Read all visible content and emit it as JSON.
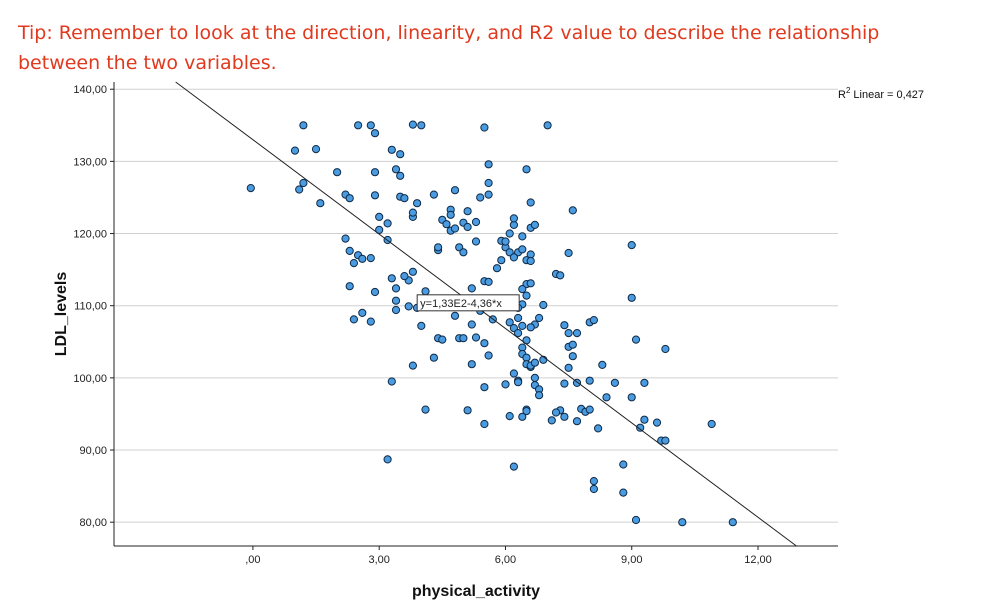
{
  "tip": {
    "line1": "Tip: Remember to look at the direction, linearity, and R2 value to describe the relationship",
    "line2": "between the two variables."
  },
  "colors": {
    "tip_text": "#e1391e",
    "point_fill": "#4a9be0",
    "point_stroke": "#0e2a47",
    "grid": "#d0d0d0",
    "fit_line": "#222222"
  },
  "chart_data": {
    "type": "scatter",
    "title": "",
    "xlabel": "physical_activity",
    "ylabel": "LDL_levels",
    "xlim": [
      -3.3,
      13.9
    ],
    "ylim": [
      76.7,
      141.0
    ],
    "xticks": [
      0,
      3,
      6,
      9,
      12
    ],
    "xtick_labels": [
      ",00",
      "3,00",
      "6,00",
      "9,00",
      "12,00"
    ],
    "yticks": [
      80,
      90,
      100,
      110,
      120,
      130,
      140
    ],
    "ytick_labels": [
      "80,00",
      "90,00",
      "100,00",
      "110,00",
      "120,00",
      "130,00",
      "140,00"
    ],
    "grid": "horizontal",
    "fit": {
      "type": "linear",
      "intercept": 133,
      "slope": -4.36,
      "label": "y=1,33E2-4,36*x",
      "r2_label": "Linear = 0,427",
      "r2_prefix": "R",
      "r2_sup": "2"
    },
    "points": [
      [
        -0.05,
        126.3
      ],
      [
        1.0,
        131.5
      ],
      [
        1.2,
        135.0
      ],
      [
        1.5,
        131.7
      ],
      [
        1.1,
        126.1
      ],
      [
        1.2,
        127.0
      ],
      [
        1.6,
        124.2
      ],
      [
        2.0,
        128.5
      ],
      [
        2.2,
        125.4
      ],
      [
        2.3,
        124.9
      ],
      [
        2.5,
        135.0
      ],
      [
        2.8,
        135.0
      ],
      [
        2.9,
        133.9
      ],
      [
        2.9,
        128.5
      ],
      [
        2.2,
        119.3
      ],
      [
        2.3,
        117.6
      ],
      [
        2.4,
        115.9
      ],
      [
        2.5,
        117.0
      ],
      [
        2.6,
        116.5
      ],
      [
        2.8,
        116.6
      ],
      [
        2.3,
        112.7
      ],
      [
        2.4,
        108.1
      ],
      [
        2.6,
        109.0
      ],
      [
        2.8,
        107.8
      ],
      [
        2.9,
        111.9
      ],
      [
        3.0,
        120.5
      ],
      [
        2.9,
        125.3
      ],
      [
        3.2,
        121.4
      ],
      [
        3.3,
        131.6
      ],
      [
        3.4,
        128.9
      ],
      [
        3.5,
        125.1
      ],
      [
        3.5,
        128.0
      ],
      [
        3.6,
        124.9
      ],
      [
        3.5,
        131.0
      ],
      [
        3.8,
        135.1
      ],
      [
        4.0,
        135.0
      ],
      [
        3.8,
        122.3
      ],
      [
        3.8,
        122.9
      ],
      [
        3.9,
        124.2
      ],
      [
        3.8,
        114.7
      ],
      [
        3.7,
        113.5
      ],
      [
        3.6,
        114.1
      ],
      [
        3.4,
        112.4
      ],
      [
        3.2,
        119.1
      ],
      [
        3.0,
        122.3
      ],
      [
        3.3,
        99.5
      ],
      [
        3.2,
        88.7
      ],
      [
        3.3,
        113.8
      ],
      [
        3.4,
        110.7
      ],
      [
        3.4,
        109.4
      ],
      [
        3.7,
        109.9
      ],
      [
        3.8,
        101.7
      ],
      [
        3.9,
        109.7
      ],
      [
        4.0,
        107.2
      ],
      [
        4.1,
        112.0
      ],
      [
        4.2,
        110.3
      ],
      [
        4.4,
        117.7
      ],
      [
        4.3,
        125.4
      ],
      [
        4.5,
        121.9
      ],
      [
        4.4,
        118.1
      ],
      [
        4.7,
        123.3
      ],
      [
        4.6,
        121.3
      ],
      [
        4.7,
        120.4
      ],
      [
        4.8,
        120.7
      ],
      [
        4.8,
        126.0
      ],
      [
        4.7,
        122.6
      ],
      [
        4.9,
        118.1
      ],
      [
        5.0,
        117.4
      ],
      [
        5.1,
        123.1
      ],
      [
        5.0,
        121.5
      ],
      [
        5.1,
        120.9
      ],
      [
        5.3,
        118.9
      ],
      [
        5.3,
        121.6
      ],
      [
        5.5,
        134.7
      ],
      [
        5.4,
        125.0
      ],
      [
        5.6,
        125.4
      ],
      [
        5.6,
        127.0
      ],
      [
        5.6,
        129.6
      ],
      [
        5.3,
        105.6
      ],
      [
        5.4,
        110.8
      ],
      [
        5.4,
        109.3
      ],
      [
        5.5,
        113.4
      ],
      [
        5.6,
        113.3
      ],
      [
        5.5,
        104.8
      ],
      [
        5.6,
        103.1
      ],
      [
        5.7,
        108.1
      ],
      [
        5.6,
        110.5
      ],
      [
        5.5,
        98.7
      ],
      [
        5.5,
        93.6
      ],
      [
        5.1,
        95.5
      ],
      [
        5.1,
        110.0
      ],
      [
        4.8,
        108.6
      ],
      [
        4.9,
        105.5
      ],
      [
        5.0,
        105.5
      ],
      [
        5.2,
        107.4
      ],
      [
        5.2,
        101.9
      ],
      [
        5.2,
        112.4
      ],
      [
        5.1,
        110.0
      ],
      [
        5.8,
        115.2
      ],
      [
        5.9,
        116.3
      ],
      [
        5.9,
        119.0
      ],
      [
        6.0,
        118.1
      ],
      [
        6.0,
        118.9
      ],
      [
        6.1,
        117.4
      ],
      [
        6.2,
        121.2
      ],
      [
        6.1,
        120.0
      ],
      [
        6.3,
        117.4
      ],
      [
        6.2,
        116.7
      ],
      [
        6.4,
        119.6
      ],
      [
        6.4,
        117.8
      ],
      [
        6.2,
        122.1
      ],
      [
        6.5,
        128.9
      ],
      [
        6.6,
        124.3
      ],
      [
        6.6,
        120.8
      ],
      [
        6.7,
        121.2
      ],
      [
        6.6,
        117.1
      ],
      [
        6.5,
        116.3
      ],
      [
        6.6,
        116.2
      ],
      [
        6.5,
        113.0
      ],
      [
        6.6,
        113.1
      ],
      [
        6.5,
        111.4
      ],
      [
        6.4,
        112.3
      ],
      [
        6.4,
        110.2
      ],
      [
        6.3,
        109.7
      ],
      [
        6.3,
        108.3
      ],
      [
        6.1,
        107.7
      ],
      [
        6.1,
        110.2
      ],
      [
        6.2,
        106.9
      ],
      [
        6.4,
        107.2
      ],
      [
        6.3,
        106.2
      ],
      [
        6.5,
        105.2
      ],
      [
        6.4,
        104.2
      ],
      [
        6.4,
        103.3
      ],
      [
        6.5,
        102.8
      ],
      [
        6.5,
        101.9
      ],
      [
        6.6,
        101.5
      ],
      [
        6.6,
        101.7
      ],
      [
        6.7,
        102.1
      ],
      [
        6.7,
        100.0
      ],
      [
        6.7,
        99.0
      ],
      [
        6.8,
        98.4
      ],
      [
        6.8,
        97.6
      ],
      [
        6.7,
        107.4
      ],
      [
        6.8,
        108.3
      ],
      [
        6.9,
        110.1
      ],
      [
        6.6,
        107.0
      ],
      [
        6.9,
        102.5
      ],
      [
        6.2,
        100.6
      ],
      [
        6.3,
        99.6
      ],
      [
        6.5,
        95.6
      ],
      [
        6.4,
        94.6
      ],
      [
        6.1,
        94.7
      ],
      [
        6.2,
        87.7
      ],
      [
        6.0,
        99.1
      ],
      [
        6.3,
        99.4
      ],
      [
        6.5,
        95.4
      ],
      [
        7.0,
        135.0
      ],
      [
        7.2,
        114.4
      ],
      [
        7.3,
        114.2
      ],
      [
        7.5,
        117.3
      ],
      [
        7.6,
        123.2
      ],
      [
        7.4,
        107.3
      ],
      [
        7.5,
        104.3
      ],
      [
        7.6,
        104.6
      ],
      [
        7.6,
        103.0
      ],
      [
        7.7,
        106.2
      ],
      [
        7.5,
        106.2
      ],
      [
        7.5,
        101.4
      ],
      [
        7.4,
        99.2
      ],
      [
        7.7,
        99.3
      ],
      [
        7.8,
        95.7
      ],
      [
        7.9,
        95.3
      ],
      [
        7.7,
        94.0
      ],
      [
        7.3,
        95.5
      ],
      [
        7.1,
        94.1
      ],
      [
        7.2,
        95.2
      ],
      [
        7.4,
        94.6
      ],
      [
        8.0,
        99.6
      ],
      [
        8.0,
        95.6
      ],
      [
        8.2,
        93.0
      ],
      [
        8.1,
        85.7
      ],
      [
        8.1,
        84.6
      ],
      [
        8.0,
        107.7
      ],
      [
        8.1,
        108.0
      ],
      [
        8.3,
        101.8
      ],
      [
        8.4,
        97.3
      ],
      [
        8.6,
        99.3
      ],
      [
        8.8,
        88.0
      ],
      [
        8.8,
        84.1
      ],
      [
        9.0,
        97.3
      ],
      [
        9.0,
        118.4
      ],
      [
        9.0,
        111.1
      ],
      [
        9.1,
        105.3
      ],
      [
        9.1,
        80.3
      ],
      [
        9.2,
        93.1
      ],
      [
        9.3,
        94.2
      ],
      [
        9.3,
        99.3
      ],
      [
        9.6,
        93.8
      ],
      [
        9.7,
        91.3
      ],
      [
        9.8,
        91.3
      ],
      [
        9.8,
        104.0
      ],
      [
        10.2,
        80.0
      ],
      [
        10.9,
        93.6
      ],
      [
        11.4,
        80.0
      ],
      [
        4.1,
        95.6
      ],
      [
        4.3,
        102.8
      ],
      [
        4.4,
        105.5
      ],
      [
        4.5,
        105.3
      ]
    ]
  }
}
